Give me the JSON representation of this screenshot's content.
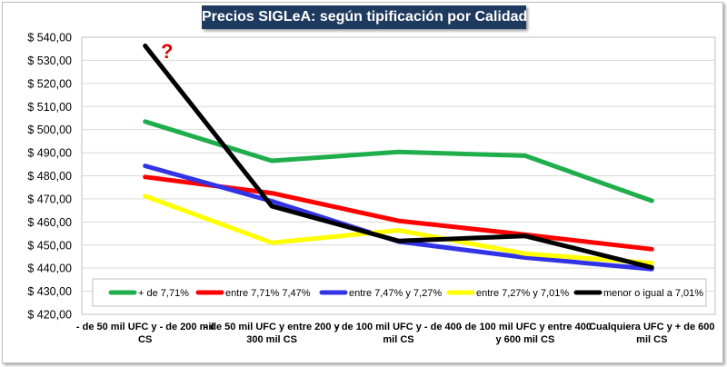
{
  "chart_data": {
    "type": "line",
    "title": "Precios SIGLeA: según tipificación por Calidad",
    "categories": [
      [
        "- de 50 mil UFC y - de 200 mil",
        "CS"
      ],
      [
        "- de 50 mil UFC y entre  200 y",
        "300 mil CS"
      ],
      [
        "- de 100 mil UFC y - de 400",
        "mil CS"
      ],
      [
        "- de 100 mil UFC y entre  400",
        "y 600 mil CS"
      ],
      [
        "Cualquiera UFC y + de 600",
        "mil CS"
      ]
    ],
    "ylim": [
      420,
      540
    ],
    "ystep": 10,
    "ytick_prefix": "$ ",
    "ytick_labels": [
      "$ 420,00",
      "$ 430,00",
      "$ 440,00",
      "$ 450,00",
      "$ 460,00",
      "$ 470,00",
      "$ 480,00",
      "$ 490,00",
      "$ 500,00",
      "$ 510,00",
      "$ 520,00",
      "$ 530,00",
      "$ 540,00"
    ],
    "legend_position": "bottom-inside",
    "annotation": "?",
    "series": [
      {
        "name": "+ de 7,71%",
        "color": "#1fae4b",
        "values": [
          503.5,
          486.5,
          490.3,
          488.7,
          469.2
        ]
      },
      {
        "name": "entre 7,71% 7,47%",
        "color": "#ff0000",
        "values": [
          479.5,
          472.5,
          460.5,
          454.5,
          448.2
        ]
      },
      {
        "name": "entre 7,47% y 7,27%",
        "color": "#3333e6",
        "values": [
          484.3,
          469.0,
          451.5,
          444.6,
          439.6
        ]
      },
      {
        "name": "entre 7,27% y 7,01%",
        "color": "#ffff00",
        "values": [
          471.2,
          451.0,
          456.4,
          446.3,
          442.2
        ]
      },
      {
        "name": "menor o igual a 7,01%",
        "color": "#000000",
        "values": [
          536.3,
          466.8,
          451.8,
          453.9,
          440.3
        ]
      }
    ]
  }
}
